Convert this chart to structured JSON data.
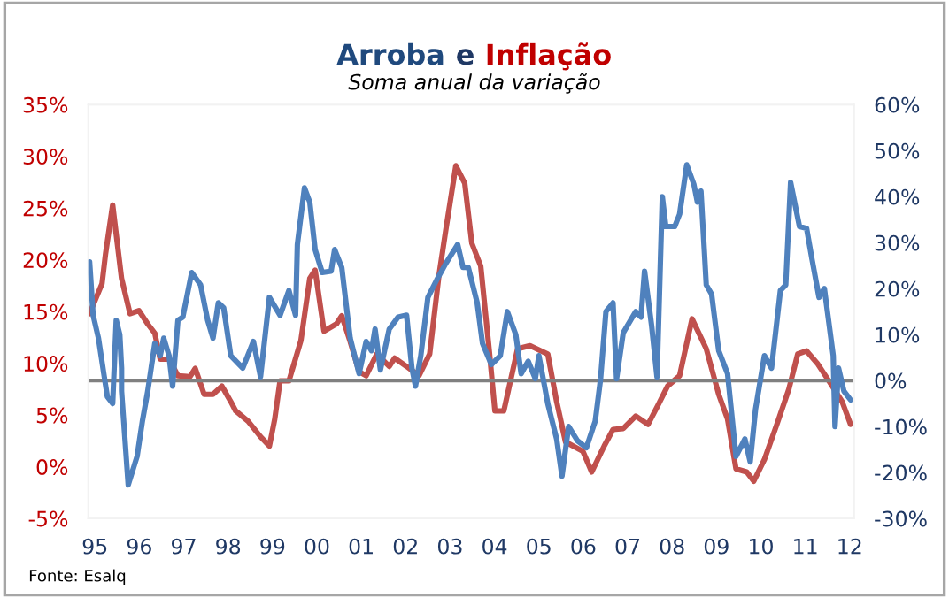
{
  "chart_data": {
    "type": "line",
    "title": "Arroba e Inflação",
    "subtitle": "Soma anual da variação",
    "annotations": [
      "Fonte: Esalq"
    ],
    "xlim": [
      1994.85,
      2012.1
    ],
    "xticks": [
      {
        "value": 1995,
        "label": "95"
      },
      {
        "value": 1996,
        "label": "96"
      },
      {
        "value": 1997,
        "label": "97"
      },
      {
        "value": 1998,
        "label": "98"
      },
      {
        "value": 1999,
        "label": "99"
      },
      {
        "value": 2000,
        "label": "00"
      },
      {
        "value": 2001,
        "label": "01"
      },
      {
        "value": 2002,
        "label": "02"
      },
      {
        "value": 2003,
        "label": "03"
      },
      {
        "value": 2004,
        "label": "04"
      },
      {
        "value": 2005,
        "label": "05"
      },
      {
        "value": 2006,
        "label": "06"
      },
      {
        "value": 2007,
        "label": "07"
      },
      {
        "value": 2008,
        "label": "08"
      },
      {
        "value": 2009,
        "label": "09"
      },
      {
        "value": 2010,
        "label": "10"
      },
      {
        "value": 2011,
        "label": "11"
      },
      {
        "value": 2012,
        "label": "12"
      }
    ],
    "ylim": [
      -5,
      35
    ],
    "yticks": [
      {
        "value": -5,
        "label": "-5%"
      },
      {
        "value": 0,
        "label": "0%"
      },
      {
        "value": 5,
        "label": "5%"
      },
      {
        "value": 10,
        "label": "10%"
      },
      {
        "value": 15,
        "label": "15%"
      },
      {
        "value": 20,
        "label": "20%"
      },
      {
        "value": 25,
        "label": "25%"
      },
      {
        "value": 30,
        "label": "30%"
      },
      {
        "value": 35,
        "label": "35%"
      }
    ],
    "y2lim": [
      -30,
      60
    ],
    "y2ticks": [
      {
        "value": -30,
        "label": "-30%"
      },
      {
        "value": -20,
        "label": "-20%"
      },
      {
        "value": -10,
        "label": "-10%"
      },
      {
        "value": 0,
        "label": "0%"
      },
      {
        "value": 10,
        "label": "10%"
      },
      {
        "value": 20,
        "label": "20%"
      },
      {
        "value": 30,
        "label": "30%"
      },
      {
        "value": 40,
        "label": "40%"
      },
      {
        "value": 50,
        "label": "50%"
      },
      {
        "value": 60,
        "label": "60%"
      }
    ],
    "ref_lines": [
      {
        "axis": "y2",
        "value": 0,
        "color": "#808080"
      }
    ],
    "grid": false,
    "legend": false,
    "marker": "none",
    "line_style": "solid",
    "series": [
      {
        "color": "#4f81bd",
        "axis": "y2",
        "x": [
          1994.88,
          1994.96,
          1995.08,
          1995.2,
          1995.28,
          1995.4,
          1995.48,
          1995.56,
          1995.6,
          1995.6,
          1995.75,
          1995.95,
          1996.07,
          1996.19,
          1996.35,
          1996.47,
          1996.55,
          1996.67,
          1996.75,
          1996.87,
          1996.98,
          1997.18,
          1997.38,
          1997.54,
          1997.66,
          1997.78,
          1997.9,
          1998.06,
          1998.33,
          1998.57,
          1998.73,
          1998.93,
          1999.17,
          1999.37,
          1999.52,
          1999.56,
          1999.72,
          1999.84,
          1999.96,
          2000.12,
          2000.32,
          2000.4,
          2000.56,
          2000.75,
          2000.95,
          2001.11,
          2001.23,
          2001.31,
          2001.43,
          2001.63,
          2001.83,
          2002.02,
          2002.14,
          2002.22,
          2002.34,
          2002.5,
          2002.7,
          2002.9,
          2003.1,
          2003.17,
          2003.29,
          2003.41,
          2003.61,
          2003.73,
          2003.93,
          2004.13,
          2004.29,
          2004.48,
          2004.6,
          2004.76,
          2004.92,
          2005.0,
          2005.2,
          2005.4,
          2005.52,
          2005.67,
          2005.87,
          2006.07,
          2006.27,
          2006.39,
          2006.51,
          2006.67,
          2006.75,
          2006.9,
          2007.18,
          2007.3,
          2007.38,
          2007.54,
          2007.66,
          2007.78,
          2007.86,
          2008.06,
          2008.17,
          2008.33,
          2008.49,
          2008.57,
          2008.65,
          2008.77,
          2008.89,
          2009.05,
          2009.25,
          2009.44,
          2009.64,
          2009.76,
          2009.88,
          2010.08,
          2010.24,
          2010.44,
          2010.56,
          2010.67,
          2010.87,
          2011.03,
          2011.15,
          2011.31,
          2011.43,
          2011.63,
          2011.67,
          2011.75,
          2011.87,
          2012.02
        ],
        "values": [
          25.8,
          14.2,
          9.2,
          1.5,
          -3.5,
          -5.0,
          13.1,
          10.0,
          2.7,
          -2.3,
          -22.7,
          -16.5,
          -8.8,
          -2.3,
          8.1,
          5.4,
          9.2,
          5.4,
          -1.2,
          13.1,
          13.8,
          23.5,
          20.8,
          13.1,
          9.2,
          16.9,
          15.8,
          5.4,
          2.7,
          8.5,
          0.8,
          18.1,
          14.2,
          19.6,
          14.2,
          29.6,
          41.9,
          38.8,
          28.5,
          23.5,
          23.8,
          28.5,
          24.6,
          9.2,
          1.5,
          8.5,
          6.5,
          11.2,
          2.3,
          11.2,
          13.8,
          14.2,
          2.7,
          -1.2,
          5.4,
          18.1,
          21.9,
          25.4,
          28.5,
          29.6,
          24.6,
          24.6,
          16.9,
          8.1,
          3.5,
          5.4,
          15.0,
          10.0,
          1.5,
          4.2,
          0.4,
          5.4,
          -5.0,
          -12.7,
          -20.8,
          -10.0,
          -13.1,
          -14.6,
          -8.8,
          0.4,
          15.0,
          16.9,
          0.4,
          10.4,
          15.0,
          13.8,
          23.8,
          11.9,
          0.8,
          40.0,
          33.5,
          33.5,
          36.2,
          46.9,
          42.7,
          38.8,
          41.2,
          20.8,
          18.8,
          6.5,
          1.5,
          -16.5,
          -12.7,
          -17.7,
          -6.2,
          5.4,
          2.7,
          19.6,
          20.8,
          43.1,
          33.5,
          33.1,
          26.5,
          18.1,
          20.0,
          5.4,
          -10.0,
          2.7,
          -2.3,
          -4.2
        ]
      },
      {
        "color": "#c0504d",
        "axis": "y",
        "x": [
          1994.88,
          1995.16,
          1995.24,
          1995.4,
          1995.6,
          1995.79,
          1995.99,
          1996.19,
          1996.35,
          1996.47,
          1996.67,
          1996.87,
          1997.14,
          1997.26,
          1997.46,
          1997.66,
          1997.86,
          1998.06,
          1998.17,
          1998.45,
          1998.73,
          1998.93,
          1999.05,
          1999.17,
          1999.37,
          1999.64,
          1999.84,
          1999.96,
          2000.16,
          2000.44,
          2000.56,
          2000.75,
          2000.95,
          2001.11,
          2001.35,
          2001.63,
          2001.75,
          2002.02,
          2002.3,
          2002.54,
          2002.74,
          2002.9,
          2003.13,
          2003.33,
          2003.49,
          2003.69,
          2003.89,
          2004.01,
          2004.21,
          2004.52,
          2004.8,
          2005.2,
          2005.4,
          2005.6,
          2005.99,
          2006.19,
          2006.47,
          2006.67,
          2006.9,
          2007.18,
          2007.46,
          2007.7,
          2007.9,
          2008.17,
          2008.45,
          2008.77,
          2009.05,
          2009.25,
          2009.44,
          2009.68,
          2009.84,
          2010.08,
          2010.36,
          2010.63,
          2010.83,
          2011.03,
          2011.27,
          2011.47,
          2011.83,
          2012.02
        ],
        "values": [
          14.8,
          17.7,
          20.6,
          25.3,
          18.2,
          14.8,
          15.1,
          13.8,
          12.9,
          10.4,
          10.4,
          8.8,
          8.7,
          9.5,
          7.0,
          7.0,
          7.8,
          6.3,
          5.4,
          4.4,
          2.9,
          2.0,
          4.6,
          8.3,
          8.3,
          12.2,
          18.2,
          19.0,
          13.1,
          13.8,
          14.6,
          12.1,
          9.2,
          8.8,
          10.9,
          9.7,
          10.5,
          9.7,
          8.8,
          10.9,
          18.2,
          22.8,
          29.1,
          27.4,
          21.6,
          19.4,
          10.9,
          5.4,
          5.4,
          11.4,
          11.7,
          10.9,
          6.3,
          2.4,
          1.5,
          -0.5,
          2.0,
          3.6,
          3.7,
          4.9,
          4.1,
          6.1,
          7.8,
          8.8,
          14.3,
          11.4,
          7.0,
          4.6,
          -0.2,
          -0.5,
          -1.4,
          0.7,
          4.1,
          7.5,
          10.9,
          11.2,
          10.0,
          8.7,
          6.3,
          4.1
        ]
      }
    ]
  }
}
